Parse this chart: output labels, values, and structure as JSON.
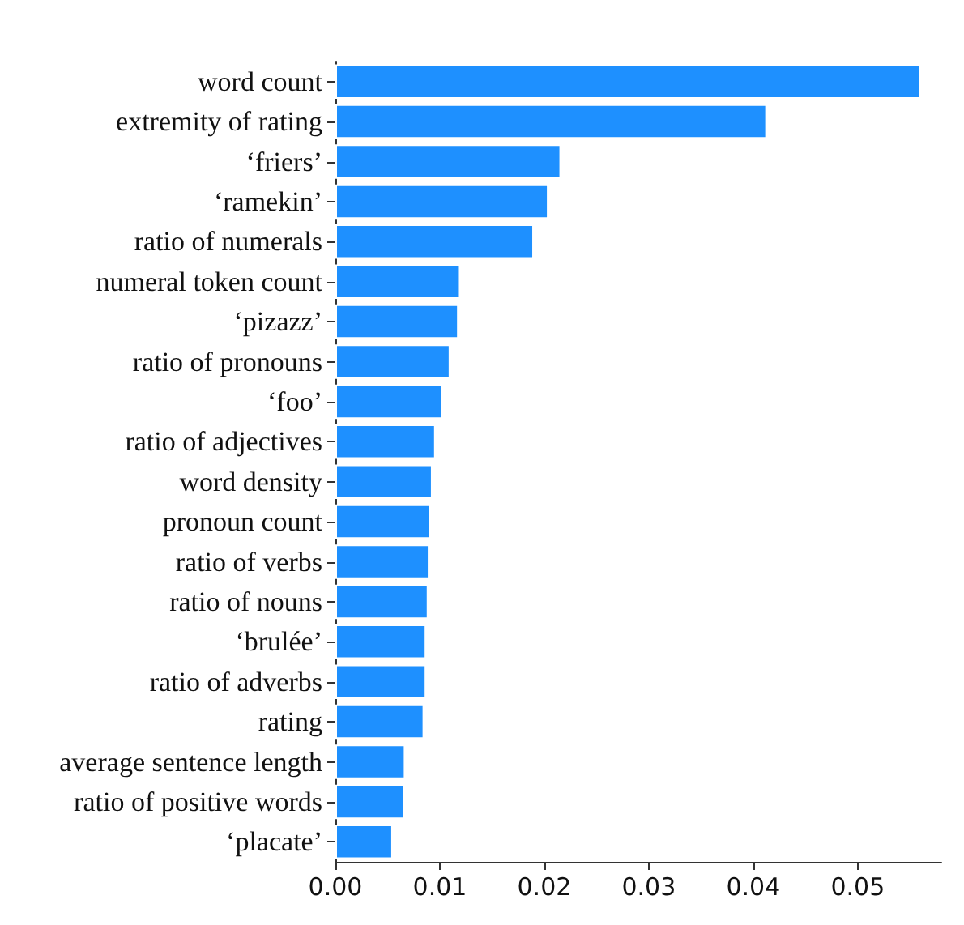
{
  "chart_data": {
    "type": "bar",
    "orientation": "horizontal",
    "categories": [
      "word count",
      "extremity of rating",
      "‘friers’",
      "‘ramekin’",
      "ratio of numerals",
      "numeral token count",
      "‘pizazz’",
      "ratio of pronouns",
      "‘foo’",
      "ratio of adjectives",
      "word density",
      "pronoun count",
      "ratio of verbs",
      "ratio of nouns",
      "‘brulée’",
      "ratio of adverbs",
      "rating",
      "average sentence length",
      "ratio of positive words",
      "‘placate’"
    ],
    "values": [
      0.056,
      0.0413,
      0.0216,
      0.0204,
      0.019,
      0.0119,
      0.0118,
      0.011,
      0.0103,
      0.0096,
      0.0093,
      0.0091,
      0.009,
      0.0089,
      0.0087,
      0.0087,
      0.0085,
      0.0067,
      0.0066,
      0.0055
    ],
    "color": "#1e90ff",
    "xlim": [
      0,
      0.058
    ],
    "xticks": [
      {
        "value": 0,
        "label": "0.00"
      },
      {
        "value": 0.01,
        "label": "0.01"
      },
      {
        "value": 0.02,
        "label": "0.02"
      },
      {
        "value": 0.03,
        "label": "0.03"
      },
      {
        "value": 0.04,
        "label": "0.04"
      },
      {
        "value": 0.05,
        "label": "0.05"
      }
    ],
    "grid": false
  }
}
